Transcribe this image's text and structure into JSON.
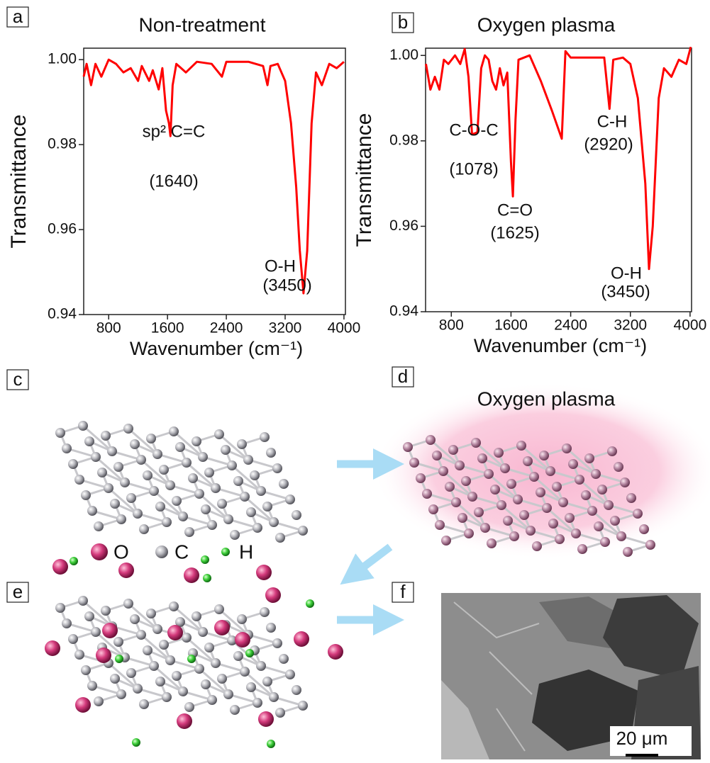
{
  "panel_labels": [
    "a",
    "b",
    "c",
    "d",
    "e",
    "f"
  ],
  "chart_data": [
    {
      "type": "line",
      "title": "Non-treatment",
      "x_label": "Wavenumber (cm⁻¹)",
      "y_label": "Transmittance",
      "color": "#ff0000",
      "x": [
        460,
        500,
        560,
        620,
        700,
        800,
        900,
        1000,
        1100,
        1200,
        1250,
        1350,
        1400,
        1480,
        1530,
        1580,
        1620,
        1640,
        1670,
        1720,
        1850,
        2000,
        2200,
        2340,
        2400,
        2700,
        2900,
        2960,
        3000,
        3100,
        3200,
        3280,
        3350,
        3400,
        3450,
        3500,
        3560,
        3620,
        3700,
        3800,
        3900,
        4000
      ],
      "values": [
        0.996,
        0.999,
        0.994,
        0.999,
        0.996,
        1.0,
        0.999,
        0.997,
        0.998,
        0.995,
        0.9985,
        0.995,
        0.9975,
        0.993,
        0.998,
        0.988,
        0.985,
        0.982,
        0.994,
        0.999,
        0.997,
        0.9995,
        0.999,
        0.996,
        0.9995,
        0.9995,
        0.9985,
        0.994,
        0.9985,
        0.999,
        0.995,
        0.985,
        0.97,
        0.955,
        0.945,
        0.955,
        0.985,
        0.997,
        0.994,
        0.999,
        0.998,
        0.9995
      ],
      "xlim": [
        460,
        4020
      ],
      "ylim": [
        0.94,
        1.0027
      ],
      "xticks": [
        800,
        1600,
        2400,
        3200,
        4000
      ],
      "yticks": [
        0.94,
        0.96,
        0.98,
        {
          "value": 1,
          "label": "1.00"
        }
      ],
      "annotations": [
        "sp² C=C",
        "(1640)",
        "O-H",
        "(3450)"
      ]
    },
    {
      "type": "line",
      "title": "Oxygen plasma",
      "x_label": "Wavenumber (cm⁻¹)",
      "y_label": "Transmittance",
      "color": "#ff0000",
      "x": [
        460,
        520,
        580,
        640,
        700,
        760,
        850,
        920,
        980,
        1030,
        1078,
        1150,
        1200,
        1250,
        1300,
        1350,
        1400,
        1450,
        1500,
        1550,
        1600,
        1625,
        1660,
        1700,
        1850,
        2000,
        2150,
        2280,
        2330,
        2400,
        2700,
        2850,
        2920,
        2970,
        3100,
        3200,
        3300,
        3400,
        3450,
        3500,
        3580,
        3650,
        3750,
        3850,
        3950,
        4010
      ],
      "values": [
        0.998,
        0.992,
        0.995,
        0.992,
        0.999,
        0.998,
        1.0,
        0.998,
        1.0015,
        0.995,
        0.9815,
        0.982,
        0.997,
        1.0,
        0.999,
        0.994,
        0.992,
        0.997,
        0.993,
        0.996,
        0.975,
        0.967,
        0.985,
        0.999,
        1.0,
        0.994,
        0.987,
        0.9805,
        1.001,
        0.9995,
        0.9995,
        0.9995,
        0.9875,
        0.999,
        0.9995,
        0.998,
        0.99,
        0.97,
        0.95,
        0.96,
        0.99,
        0.997,
        0.995,
        0.999,
        0.998,
        1.002
      ],
      "xlim": [
        455,
        4020
      ],
      "ylim": [
        0.94,
        1.0017
      ],
      "xticks": [
        800,
        1600,
        2400,
        3200,
        4000
      ],
      "yticks": [
        0.94,
        0.96,
        0.98,
        {
          "value": 1,
          "label": "1.00"
        }
      ],
      "annotations": [
        "C-O-C",
        "(1078)",
        "C=O",
        "(1625)",
        "C-H",
        "(2920)",
        "O-H",
        "(3450)"
      ]
    }
  ],
  "diagram": {
    "plasma_title": "Oxygen plasma",
    "legend": [
      "O",
      "C",
      "H"
    ]
  },
  "sem": {
    "scale_bar": "20 μm"
  }
}
